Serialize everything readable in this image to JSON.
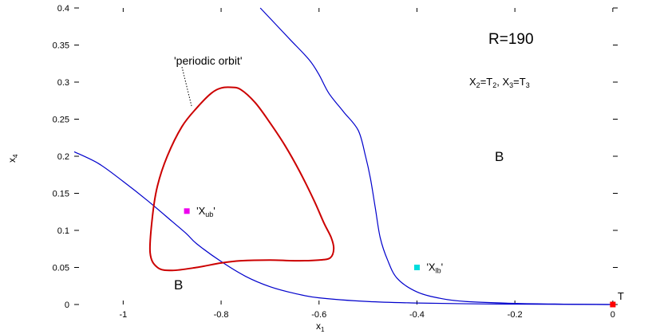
{
  "chart_data": {
    "type": "line",
    "title": "",
    "xlabel": "x",
    "xlabel_sub": "1",
    "ylabel": "x",
    "ylabel_sub": "4",
    "xlim": [
      -1.1,
      0.01
    ],
    "ylim": [
      0,
      0.4
    ],
    "xticks": [
      -1,
      -0.8,
      -0.6,
      -0.4,
      -0.2,
      0
    ],
    "xtick_labels": [
      "-1",
      "-0.8",
      "-0.6",
      "-0.4",
      "-0.2",
      "0"
    ],
    "yticks": [
      0,
      0.05,
      0.1,
      0.15,
      0.2,
      0.25,
      0.3,
      0.35,
      0.4
    ],
    "ytick_labels": [
      "0",
      "0.05",
      "0.1",
      "0.15",
      "0.2",
      "0.25",
      "0.3",
      "0.35",
      "0.4"
    ],
    "grid": false,
    "series": [
      {
        "color": "#0000cc",
        "points": [
          [
            -1.1,
            0.206
          ],
          [
            -1.05,
            0.19
          ],
          [
            -1.0,
            0.166
          ],
          [
            -0.95,
            0.14
          ],
          [
            -0.9,
            0.112
          ],
          [
            -0.87,
            0.095
          ],
          [
            -0.85,
            0.082
          ],
          [
            -0.8,
            0.058
          ],
          [
            -0.75,
            0.038
          ],
          [
            -0.7,
            0.024
          ],
          [
            -0.65,
            0.015
          ],
          [
            -0.6,
            0.009
          ],
          [
            -0.5,
            0.004
          ],
          [
            -0.4,
            0.002
          ],
          [
            -0.3,
            0.001
          ],
          [
            -0.2,
            0.0005
          ],
          [
            -0.1,
            0.0002
          ],
          [
            0,
            0
          ]
        ]
      },
      {
        "color": "#0000cc",
        "points": [
          [
            -0.72,
            0.4
          ],
          [
            -0.7,
            0.386
          ],
          [
            -0.66,
            0.358
          ],
          [
            -0.62,
            0.33
          ],
          [
            -0.6,
            0.31
          ],
          [
            -0.58,
            0.285
          ],
          [
            -0.55,
            0.26
          ],
          [
            -0.52,
            0.235
          ],
          [
            -0.505,
            0.2
          ],
          [
            -0.495,
            0.17
          ],
          [
            -0.485,
            0.13
          ],
          [
            -0.475,
            0.09
          ],
          [
            -0.46,
            0.06
          ],
          [
            -0.44,
            0.035
          ],
          [
            -0.4,
            0.017
          ],
          [
            -0.35,
            0.008
          ],
          [
            -0.3,
            0.004
          ],
          [
            -0.2,
            0.0015
          ],
          [
            -0.1,
            0.0005
          ],
          [
            0,
            0
          ]
        ]
      },
      {
        "name": "'periodic orbit'",
        "color": "#cc0000",
        "closed": true,
        "points": [
          [
            -0.78,
            0.293
          ],
          [
            -0.76,
            0.29
          ],
          [
            -0.73,
            0.272
          ],
          [
            -0.7,
            0.245
          ],
          [
            -0.67,
            0.215
          ],
          [
            -0.64,
            0.18
          ],
          [
            -0.61,
            0.14
          ],
          [
            -0.59,
            0.11
          ],
          [
            -0.575,
            0.09
          ],
          [
            -0.57,
            0.075
          ],
          [
            -0.577,
            0.063
          ],
          [
            -0.6,
            0.06
          ],
          [
            -0.65,
            0.059
          ],
          [
            -0.7,
            0.06
          ],
          [
            -0.76,
            0.059
          ],
          [
            -0.8,
            0.056
          ],
          [
            -0.85,
            0.05
          ],
          [
            -0.9,
            0.046
          ],
          [
            -0.93,
            0.05
          ],
          [
            -0.945,
            0.07
          ],
          [
            -0.94,
            0.12
          ],
          [
            -0.93,
            0.16
          ],
          [
            -0.91,
            0.2
          ],
          [
            -0.88,
            0.24
          ],
          [
            -0.85,
            0.265
          ],
          [
            -0.82,
            0.285
          ],
          [
            -0.8,
            0.292
          ],
          [
            -0.78,
            0.293
          ]
        ]
      }
    ],
    "markers": [
      {
        "label": "'X",
        "sub": "ub",
        "suffix": "'",
        "x": -0.87,
        "y": 0.126,
        "color": "#ee00ee"
      },
      {
        "label": "'X",
        "sub": "lb",
        "suffix": "'",
        "x": -0.4,
        "y": 0.05,
        "color": "#00dddd"
      },
      {
        "label": "T",
        "sub": "",
        "suffix": "",
        "x": 0,
        "y": 0,
        "color": "#ff0000"
      }
    ],
    "annotations": {
      "r_label": "R=190",
      "condition_parts": [
        "X",
        "2",
        "=T",
        "2",
        ", X",
        "3",
        "=T",
        "3"
      ],
      "basin_label": "B",
      "orbit_label": "'periodic orbit'"
    }
  }
}
